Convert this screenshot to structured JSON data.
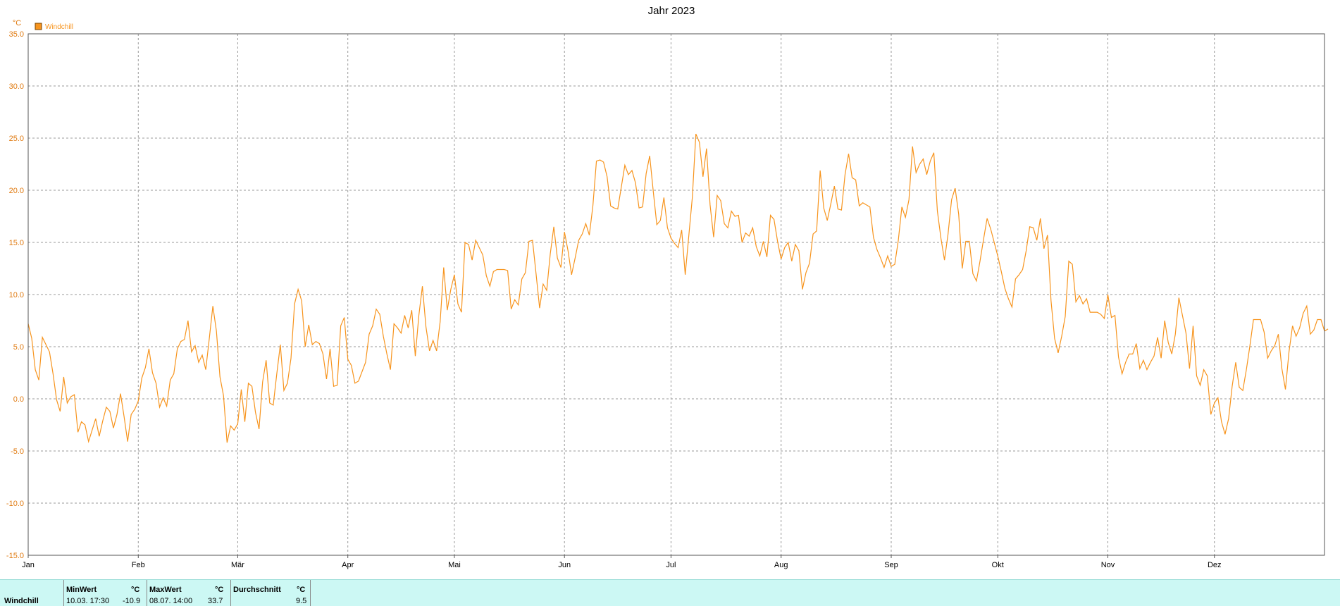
{
  "chart_data": {
    "type": "line",
    "title": "Jahr 2023",
    "ylabel": "°C",
    "ylim": [
      -15,
      35
    ],
    "yticks": [
      "35.0",
      "30.0",
      "25.0",
      "20.0",
      "15.0",
      "10.0",
      "5.0",
      "0.0",
      "-5.0",
      "-10.0",
      "-15.0"
    ],
    "xticks": [
      "Jan",
      "Feb",
      "Mär",
      "Apr",
      "Mai",
      "Jun",
      "Jul",
      "Aug",
      "Sep",
      "Okt",
      "Nov",
      "Dez"
    ],
    "grid": true,
    "legend_position": "top-left",
    "series": [
      {
        "name": "Windchill",
        "color": "#f7941d",
        "x_unit": "day_of_year",
        "values": [
          7.2,
          5.8,
          2.8,
          1.8,
          5.9,
          5.2,
          4.5,
          2.4,
          -0.1,
          -1.2,
          2.1,
          -0.4,
          0.2,
          0.4,
          -3.2,
          -2.2,
          -2.5,
          -4.1,
          -3.0,
          -1.9,
          -3.6,
          -2.1,
          -0.8,
          -1.2,
          -2.8,
          -1.5,
          0.5,
          -1.7,
          -4.1,
          -1.5,
          -1.0,
          -0.2,
          2.0,
          3.0,
          4.8,
          2.5,
          1.5,
          -0.8,
          0.1,
          -0.7,
          1.8,
          2.4,
          4.8,
          5.5,
          5.7,
          7.5,
          4.5,
          5.1,
          3.5,
          4.2,
          2.8,
          5.8,
          8.9,
          6.5,
          2.1,
          0.3,
          -4.2,
          -2.6,
          -3.0,
          -2.4,
          0.9,
          -2.2,
          1.5,
          1.2,
          -1.3,
          -2.9,
          1.6,
          3.7,
          -0.4,
          -0.6,
          2.4,
          5.2,
          0.8,
          1.5,
          3.9,
          9.1,
          10.5,
          9.4,
          5.0,
          7.1,
          5.2,
          5.5,
          5.3,
          4.3,
          1.9,
          4.8,
          1.2,
          1.3,
          7.0,
          7.8,
          3.8,
          3.2,
          1.5,
          1.7,
          2.6,
          3.5,
          6.2,
          7.0,
          8.6,
          8.1,
          6.0,
          4.3,
          2.8,
          7.2,
          6.8,
          6.3,
          8.0,
          6.8,
          8.5,
          4.1,
          8.0,
          10.8,
          6.9,
          4.6,
          5.6,
          4.6,
          7.4,
          12.6,
          8.5,
          10.5,
          11.9,
          9.1,
          8.3,
          15.0,
          14.8,
          13.3,
          15.2,
          14.5,
          13.8,
          11.8,
          10.8,
          12.2,
          12.4,
          12.4,
          12.4,
          12.3,
          8.6,
          9.5,
          9.0,
          11.5,
          12.1,
          15.1,
          15.2,
          12.0,
          8.7,
          11.0,
          10.4,
          13.9,
          16.5,
          13.5,
          12.6,
          16.0,
          14.2,
          11.9,
          13.5,
          15.2,
          15.8,
          16.8,
          15.7,
          18.5,
          22.8,
          22.9,
          22.7,
          21.3,
          18.5,
          18.3,
          18.2,
          20.3,
          22.4,
          21.5,
          21.9,
          20.7,
          18.3,
          18.4,
          21.6,
          23.3,
          19.9,
          16.7,
          17.1,
          19.3,
          16.4,
          15.4,
          14.9,
          14.5,
          16.2,
          11.9,
          15.6,
          19.3,
          25.4,
          24.6,
          21.3,
          24.0,
          18.6,
          15.5,
          19.5,
          19.0,
          16.8,
          16.4,
          18.0,
          17.5,
          17.6,
          15.0,
          15.9,
          15.6,
          16.4,
          14.6,
          13.7,
          15.1,
          13.6,
          17.6,
          17.2,
          15.1,
          13.4,
          14.5,
          15.0,
          13.2,
          14.8,
          14.2,
          10.5,
          12.1,
          13.0,
          15.8,
          16.1,
          21.9,
          18.3,
          17.1,
          18.7,
          20.4,
          18.2,
          18.1,
          21.5,
          23.5,
          21.2,
          21.0,
          18.5,
          18.8,
          18.6,
          18.4,
          15.5,
          14.3,
          13.5,
          12.6,
          13.7,
          12.7,
          12.9,
          15.2,
          18.4,
          17.4,
          19.1,
          24.2,
          21.7,
          22.5,
          23.0,
          21.5,
          22.8,
          23.6,
          18.0,
          15.4,
          13.3,
          15.8,
          19.1,
          20.2,
          17.7,
          12.5,
          15.1,
          15.1,
          12.0,
          11.3,
          13.2,
          15.3,
          17.3,
          16.3,
          15.0,
          13.7,
          12.2,
          10.6,
          9.6,
          8.8,
          11.5,
          11.9,
          12.4,
          14.2,
          16.5,
          16.4,
          15.2,
          17.3,
          14.4,
          15.7,
          9.4,
          5.8,
          4.4,
          6.0,
          7.9,
          13.2,
          12.9,
          9.3,
          9.9,
          9.1,
          9.6,
          8.3,
          8.3,
          8.3,
          8.1,
          7.7,
          10.0,
          7.8,
          8.0,
          4.0,
          2.4,
          3.5,
          4.3,
          4.3,
          5.3,
          2.9,
          3.7,
          2.8,
          3.5,
          4.1,
          5.9,
          3.9,
          7.5,
          5.4,
          4.3,
          6.2,
          9.7,
          8.0,
          6.3,
          2.9,
          7.0,
          2.2,
          1.3,
          2.8,
          2.2,
          -1.5,
          -0.4,
          0.1,
          -2.2,
          -3.4,
          -1.9,
          1.2,
          3.5,
          1.1,
          0.8,
          2.8,
          5.1,
          7.6,
          7.6,
          7.6,
          6.4,
          3.9,
          4.6,
          5.1,
          6.2,
          2.9,
          0.9,
          4.5,
          7.0,
          6.0,
          6.8,
          8.2,
          8.9,
          6.2,
          6.6,
          7.6,
          7.6,
          6.5,
          6.7
        ]
      }
    ]
  },
  "stats": {
    "row_label": "Windchill",
    "min_label": "MinWert",
    "min_unit": "°C",
    "min_time": "10.03.  17:30",
    "min_value": "-10.9",
    "max_label": "MaxWert",
    "max_unit": "°C",
    "max_time": "08.07.  14:00",
    "max_value": "33.7",
    "avg_label": "Durchschnitt",
    "avg_unit": "°C",
    "avg_value": "9.5"
  }
}
